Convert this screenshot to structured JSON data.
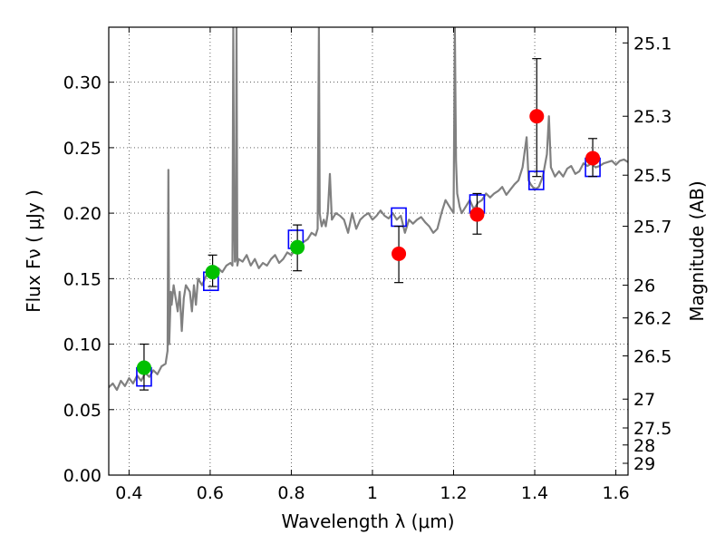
{
  "chart_data": {
    "type": "scatter",
    "xlabel": "Wavelength  λ (μm)",
    "ylabel": "Flux  Fν  ( μJy )",
    "ylabel_right": "Magnitude (AB)",
    "xlim": [
      0.35,
      1.63
    ],
    "ylim": [
      0.0,
      0.342
    ],
    "grid": true,
    "x_ticks": [
      0.4,
      0.6,
      0.8,
      1.0,
      1.2,
      1.4,
      1.6
    ],
    "x_tick_labels": [
      "0.4",
      "0.6",
      "0.8",
      "1",
      "1.2",
      "1.4",
      "1.6"
    ],
    "y_ticks": [
      0.0,
      0.05,
      0.1,
      0.15,
      0.2,
      0.25,
      0.3
    ],
    "y_tick_labels": [
      "0.00",
      "0.05",
      "0.10",
      "0.15",
      "0.20",
      "0.25",
      "0.30"
    ],
    "right_ticks": [
      {
        "label": "25.1",
        "flux": 0.33
      },
      {
        "label": "25.3",
        "flux": 0.274
      },
      {
        "label": "25.5",
        "flux": 0.229
      },
      {
        "label": "25.7",
        "flux": 0.19
      },
      {
        "label": "26",
        "flux": 0.145
      },
      {
        "label": "26.2",
        "flux": 0.12
      },
      {
        "label": "26.5",
        "flux": 0.091
      },
      {
        "label": "27",
        "flux": 0.058
      },
      {
        "label": "27.5",
        "flux": 0.036
      },
      {
        "label": "28",
        "flux": 0.023
      },
      {
        "label": "29",
        "flux": 0.009
      }
    ],
    "series": [
      {
        "marker": "line",
        "color": "#808080",
        "x": [
          0.35,
          0.36,
          0.37,
          0.38,
          0.39,
          0.4,
          0.41,
          0.42,
          0.43,
          0.44,
          0.45,
          0.46,
          0.47,
          0.48,
          0.49,
          0.495,
          0.497,
          0.499,
          0.501,
          0.503,
          0.505,
          0.51,
          0.52,
          0.525,
          0.53,
          0.535,
          0.54,
          0.55,
          0.555,
          0.56,
          0.565,
          0.57,
          0.58,
          0.59,
          0.6,
          0.61,
          0.62,
          0.63,
          0.64,
          0.65,
          0.655,
          0.657,
          0.659,
          0.661,
          0.663,
          0.665,
          0.667,
          0.67,
          0.68,
          0.69,
          0.7,
          0.71,
          0.72,
          0.73,
          0.74,
          0.75,
          0.76,
          0.77,
          0.78,
          0.79,
          0.8,
          0.81,
          0.82,
          0.83,
          0.84,
          0.85,
          0.86,
          0.865,
          0.868,
          0.87,
          0.872,
          0.875,
          0.88,
          0.885,
          0.89,
          0.895,
          0.9,
          0.91,
          0.92,
          0.93,
          0.94,
          0.95,
          0.96,
          0.97,
          0.98,
          0.99,
          1.0,
          1.01,
          1.02,
          1.03,
          1.04,
          1.05,
          1.06,
          1.07,
          1.08,
          1.09,
          1.1,
          1.11,
          1.12,
          1.13,
          1.14,
          1.15,
          1.16,
          1.17,
          1.18,
          1.19,
          1.2,
          1.203,
          1.206,
          1.209,
          1.212,
          1.215,
          1.22,
          1.23,
          1.24,
          1.25,
          1.26,
          1.27,
          1.28,
          1.29,
          1.3,
          1.31,
          1.32,
          1.33,
          1.34,
          1.35,
          1.36,
          1.37,
          1.38,
          1.385,
          1.39,
          1.4,
          1.41,
          1.42,
          1.43,
          1.435,
          1.44,
          1.45,
          1.46,
          1.47,
          1.48,
          1.49,
          1.5,
          1.51,
          1.52,
          1.53,
          1.54,
          1.55,
          1.56,
          1.57,
          1.58,
          1.59,
          1.6,
          1.61,
          1.62,
          1.63
        ],
        "y": [
          0.067,
          0.07,
          0.065,
          0.072,
          0.068,
          0.074,
          0.07,
          0.076,
          0.072,
          0.078,
          0.075,
          0.08,
          0.077,
          0.083,
          0.085,
          0.095,
          0.233,
          0.1,
          0.12,
          0.14,
          0.13,
          0.145,
          0.125,
          0.14,
          0.11,
          0.135,
          0.145,
          0.14,
          0.125,
          0.145,
          0.13,
          0.15,
          0.145,
          0.152,
          0.155,
          0.15,
          0.158,
          0.155,
          0.16,
          0.162,
          0.16,
          0.342,
          0.2,
          0.163,
          0.165,
          0.342,
          0.16,
          0.165,
          0.163,
          0.168,
          0.16,
          0.165,
          0.158,
          0.162,
          0.16,
          0.165,
          0.168,
          0.162,
          0.165,
          0.17,
          0.168,
          0.172,
          0.175,
          0.178,
          0.18,
          0.185,
          0.183,
          0.188,
          0.342,
          0.2,
          0.195,
          0.19,
          0.195,
          0.19,
          0.2,
          0.23,
          0.195,
          0.2,
          0.198,
          0.195,
          0.185,
          0.2,
          0.188,
          0.195,
          0.198,
          0.2,
          0.195,
          0.198,
          0.202,
          0.198,
          0.196,
          0.2,
          0.195,
          0.198,
          0.185,
          0.195,
          0.192,
          0.195,
          0.197,
          0.193,
          0.19,
          0.185,
          0.188,
          0.2,
          0.21,
          0.205,
          0.2,
          0.342,
          0.24,
          0.215,
          0.21,
          0.205,
          0.2,
          0.205,
          0.21,
          0.203,
          0.208,
          0.21,
          0.215,
          0.212,
          0.215,
          0.217,
          0.22,
          0.214,
          0.218,
          0.222,
          0.225,
          0.235,
          0.258,
          0.225,
          0.222,
          0.218,
          0.22,
          0.228,
          0.245,
          0.274,
          0.235,
          0.228,
          0.232,
          0.228,
          0.234,
          0.236,
          0.23,
          0.232,
          0.238,
          0.236,
          0.238,
          0.235,
          0.236,
          0.238,
          0.239,
          0.24,
          0.237,
          0.24,
          0.241,
          0.239
        ]
      },
      {
        "marker": "open-square",
        "color": "#0000ff",
        "x": [
          0.437,
          0.602,
          0.811,
          1.065,
          1.258,
          1.404,
          1.543
        ],
        "y": [
          0.075,
          0.148,
          0.18,
          0.197,
          0.207,
          0.225,
          0.235
        ]
      },
      {
        "marker": "circle",
        "color": "#00c000",
        "x": [
          0.437,
          0.606,
          0.815
        ],
        "y": [
          0.082,
          0.155,
          0.174
        ],
        "err_low": [
          0.017,
          0.011,
          0.018
        ],
        "err_high": [
          0.018,
          0.013,
          0.017
        ]
      },
      {
        "marker": "circle",
        "color": "#ff0000",
        "x": [
          1.065,
          1.258,
          1.405,
          1.543
        ],
        "y": [
          0.169,
          0.199,
          0.274,
          0.242
        ],
        "err_low": [
          0.022,
          0.015,
          0.046,
          0.014
        ],
        "err_high": [
          0.021,
          0.016,
          0.044,
          0.015
        ]
      }
    ]
  }
}
